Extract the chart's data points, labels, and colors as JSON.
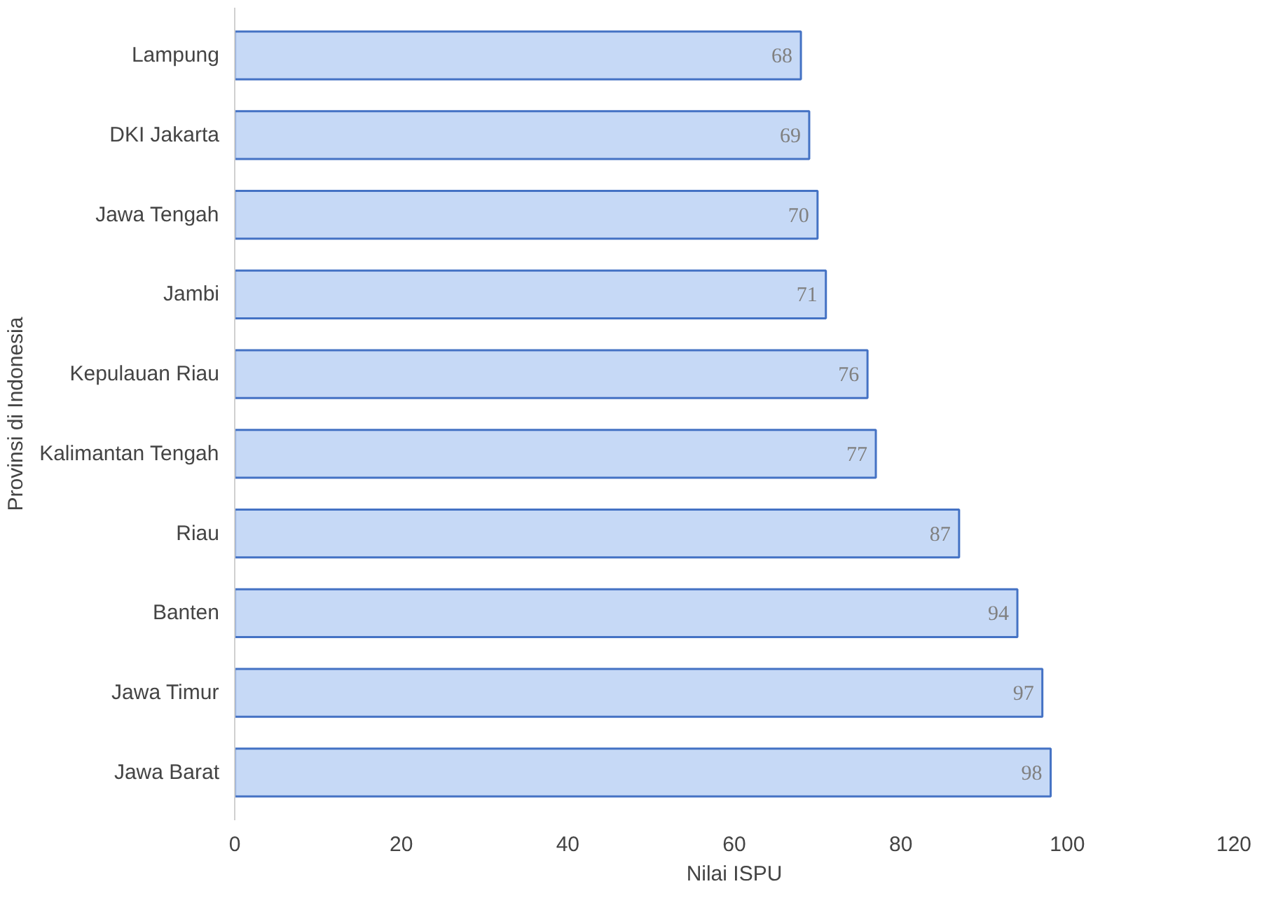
{
  "chart_data": {
    "type": "bar",
    "orientation": "horizontal",
    "xlabel": "Nilai ISPU",
    "ylabel": "Provinsi di Indonesia",
    "categories": [
      "Lampung",
      "DKI Jakarta",
      "Jawa Tengah",
      "Jambi",
      "Kepulauan Riau",
      "Kalimantan Tengah",
      "Riau",
      "Banten",
      "Jawa Timur",
      "Jawa Barat"
    ],
    "values": [
      68,
      69,
      70,
      71,
      76,
      77,
      87,
      94,
      97,
      98
    ],
    "color": "#c6d9f6",
    "xlim": [
      0,
      120
    ],
    "xticks": [
      0,
      20,
      40,
      60,
      80,
      100,
      120
    ],
    "grid": false,
    "data_labels": true
  }
}
